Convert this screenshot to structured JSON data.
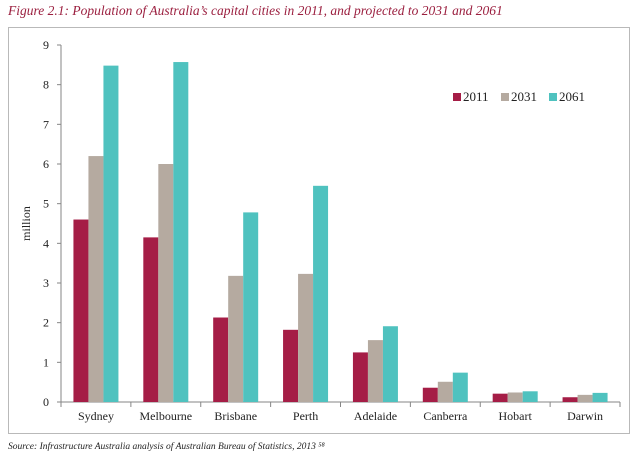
{
  "title": "Figure 2.1: Population of Australia’s capital cities in 2011, and projected to 2031 and 2061",
  "source": "Source: Infrastructure Australia analysis of Australian Bureau of Statistics, 2013 ⁵⁸",
  "chart_data": {
    "type": "bar",
    "title": "",
    "xlabel": "",
    "ylabel": "million",
    "ylim": [
      0,
      9
    ],
    "yticks": [
      0,
      1,
      2,
      3,
      4,
      5,
      6,
      7,
      8,
      9
    ],
    "grid": false,
    "legend_position": "top-right",
    "categories": [
      "Sydney",
      "Melbourne",
      "Brisbane",
      "Perth",
      "Adelaide",
      "Canberra",
      "Hobart",
      "Darwin"
    ],
    "series": [
      {
        "name": "2011",
        "color": "#a51d46",
        "values": [
          4.6,
          4.15,
          2.13,
          1.82,
          1.25,
          0.36,
          0.21,
          0.12
        ]
      },
      {
        "name": "2031",
        "color": "#b5aaa0",
        "values": [
          6.2,
          6.0,
          3.18,
          3.23,
          1.56,
          0.51,
          0.24,
          0.18
        ]
      },
      {
        "name": "2061",
        "color": "#4fc2bf",
        "values": [
          8.48,
          8.57,
          4.78,
          5.45,
          1.91,
          0.74,
          0.27,
          0.23
        ]
      }
    ]
  }
}
